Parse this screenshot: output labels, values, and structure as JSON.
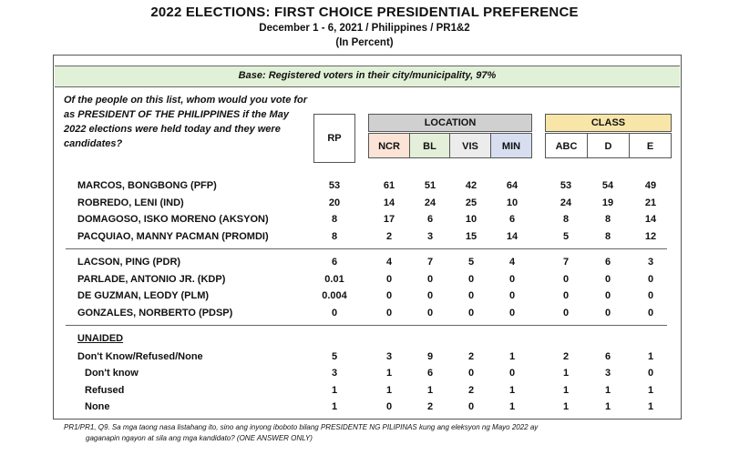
{
  "header": {
    "title": "2022 ELECTIONS: FIRST CHOICE PRESIDENTIAL PREFERENCE",
    "subtitle": "December 1 - 6, 2021 / Philippines / PR1&2",
    "unit": "(In Percent)"
  },
  "base_note": "Base: Registered voters in their city/municipality, 97%",
  "question": "Of the people on this list, whom would you vote for as PRESIDENT OF THE PHILIPPINES if the May 2022 elections were held today and they were candidates?",
  "columns": {
    "rp": "RP",
    "location_title": "LOCATION",
    "location": [
      "NCR",
      "BL",
      "VIS",
      "MIN"
    ],
    "class_title": "CLASS",
    "class": [
      "ABC",
      "D",
      "E"
    ]
  },
  "column_colors": {
    "NCR": "#fbe3d6",
    "BL": "#e3efd9",
    "VIS": "#ececec",
    "MIN": "#d6def0",
    "location_header": "#d0d0d0",
    "class_header": "#f7e6a8",
    "base_bar": "#e1f1d7"
  },
  "groups": [
    {
      "rows": [
        {
          "label": "MARCOS, BONGBONG (PFP)",
          "values": [
            "53",
            "61",
            "51",
            "42",
            "64",
            "53",
            "54",
            "49"
          ]
        },
        {
          "label": "ROBREDO, LENI (IND)",
          "values": [
            "20",
            "14",
            "24",
            "25",
            "10",
            "24",
            "19",
            "21"
          ]
        },
        {
          "label": "DOMAGOSO, ISKO MORENO (AKSYON)",
          "values": [
            "8",
            "17",
            "6",
            "10",
            "6",
            "8",
            "8",
            "14"
          ]
        },
        {
          "label": "PACQUIAO, MANNY PACMAN (PROMDI)",
          "values": [
            "8",
            "2",
            "3",
            "15",
            "14",
            "5",
            "8",
            "12"
          ]
        }
      ]
    },
    {
      "rows": [
        {
          "label": "LACSON, PING (PDR)",
          "values": [
            "6",
            "4",
            "7",
            "5",
            "4",
            "7",
            "6",
            "3"
          ]
        },
        {
          "label": "PARLADE, ANTONIO JR. (KDP)",
          "values": [
            "0.01",
            "0",
            "0",
            "0",
            "0",
            "0",
            "0",
            "0"
          ]
        },
        {
          "label": "DE GUZMAN, LEODY (PLM)",
          "values": [
            "0.004",
            "0",
            "0",
            "0",
            "0",
            "0",
            "0",
            "0"
          ]
        },
        {
          "label": "GONZALES, NORBERTO (PDSP)",
          "values": [
            "0",
            "0",
            "0",
            "0",
            "0",
            "0",
            "0",
            "0"
          ]
        }
      ]
    },
    {
      "heading": "UNAIDED",
      "rows": [
        {
          "label": "Don't Know/Refused/None",
          "values": [
            "5",
            "3",
            "9",
            "2",
            "1",
            "2",
            "6",
            "1"
          ]
        },
        {
          "label": "Don't know",
          "indent": true,
          "values": [
            "3",
            "1",
            "6",
            "0",
            "0",
            "1",
            "3",
            "0"
          ]
        },
        {
          "label": "Refused",
          "indent": true,
          "values": [
            "1",
            "1",
            "1",
            "2",
            "1",
            "1",
            "1",
            "1"
          ]
        },
        {
          "label": "None",
          "indent": true,
          "values": [
            "1",
            "0",
            "2",
            "0",
            "1",
            "1",
            "1",
            "1"
          ]
        }
      ]
    }
  ],
  "footnote": {
    "line1": "PR1/PR1, Q9. Sa mga taong nasa listahang ito, sino ang inyong iboboto bilang  PRESIDENTE NG PILIPINAS kung ang eleksyon ng Mayo 2022 ay",
    "line2": "gaganapin ngayon at sila ang mga kandidato? (ONE ANSWER ONLY)"
  }
}
